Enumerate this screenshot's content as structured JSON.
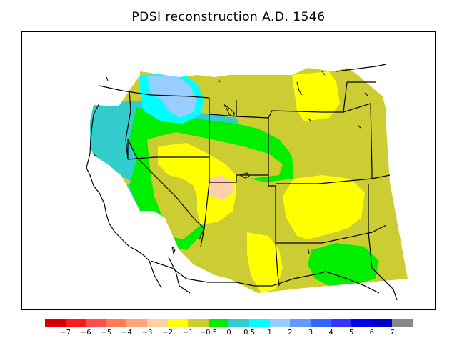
{
  "title": "PDSI reconstruction A.D. 1546",
  "legend": {
    "colors": [
      "#d60000",
      "#ff1a1a",
      "#ff4d4d",
      "#ff7a55",
      "#ffa577",
      "#ffcfa6",
      "#ffff00",
      "#cccc33",
      "#00ee00",
      "#33cccc",
      "#00ffff",
      "#99ccff",
      "#6699ff",
      "#3366ff",
      "#3333ff",
      "#0000ee",
      "#0000cc",
      "#888888"
    ],
    "ticks": [
      "−7",
      "−6",
      "−5",
      "−4",
      "−3",
      "−2",
      "−1",
      "−0.5",
      "0",
      "0.5",
      "1",
      "2",
      "3",
      "4",
      "5",
      "6",
      "7"
    ]
  },
  "map_fill": {
    "palette_note_none": "",
    "very_dry": "#ffcfa6",
    "dry": "#ffff00",
    "moderately_dry": "#cccc33",
    "near_normal": "#00ee00",
    "slightly_wet": "#33cccc",
    "wet": "#00ffff",
    "very_wet": "#99ccff"
  }
}
